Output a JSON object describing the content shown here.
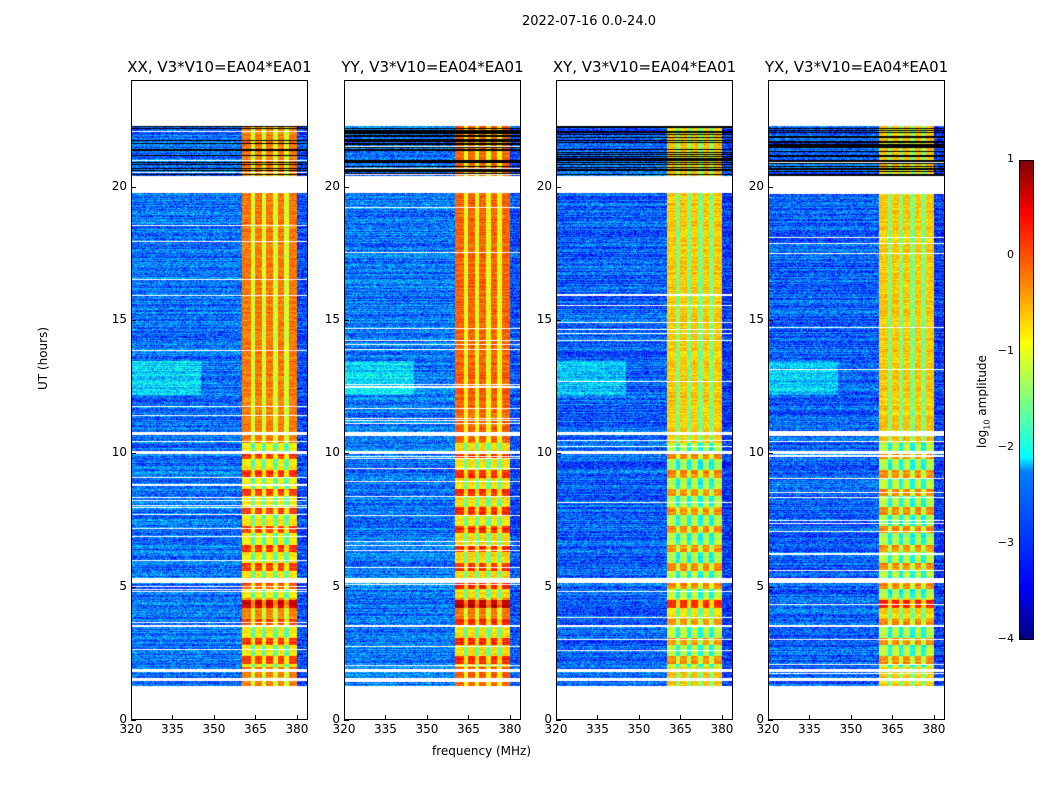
{
  "chart_data": {
    "type": "heatmap",
    "title": "2022-07-16 0.0-24.0",
    "xlabel": "frequency (MHz)",
    "ylabel": "UT (hours)",
    "xlim": [
      320,
      384
    ],
    "ylim": [
      0,
      24
    ],
    "xticks": [
      "320",
      "335",
      "350",
      "365",
      "380"
    ],
    "yticks": [
      "0",
      "5",
      "10",
      "15",
      "20"
    ],
    "colorbar": {
      "label_main": "log",
      "label_sub": "10",
      "label_rest": " amplitude",
      "range": [
        -4,
        1
      ],
      "ticks": [
        "1",
        "0",
        "−1",
        "−2",
        "−3",
        "−4"
      ],
      "colormap": "jet"
    },
    "data_coverage_hours": [
      1.3,
      22.3
    ],
    "gap_hours": [
      [
        1.5,
        1.6
      ],
      [
        1.8,
        1.95
      ],
      [
        3.5,
        3.6
      ],
      [
        5.15,
        5.35
      ],
      [
        10.0,
        10.1
      ],
      [
        10.7,
        10.8
      ],
      [
        19.8,
        20.4
      ]
    ],
    "rfi_band_mhz": [
      360,
      380
    ],
    "panels": [
      {
        "title": "XX, V3*V10=EA04*EA01",
        "background_level": -2.8,
        "band_level": -0.2
      },
      {
        "title": "YY, V3*V10=EA04*EA01",
        "background_level": -2.8,
        "band_level": -0.1
      },
      {
        "title": "XY, V3*V10=EA04*EA01",
        "background_level": -2.9,
        "band_level": -0.6
      },
      {
        "title": "YX, V3*V10=EA04*EA01",
        "background_level": -2.9,
        "band_level": -0.6
      }
    ]
  }
}
